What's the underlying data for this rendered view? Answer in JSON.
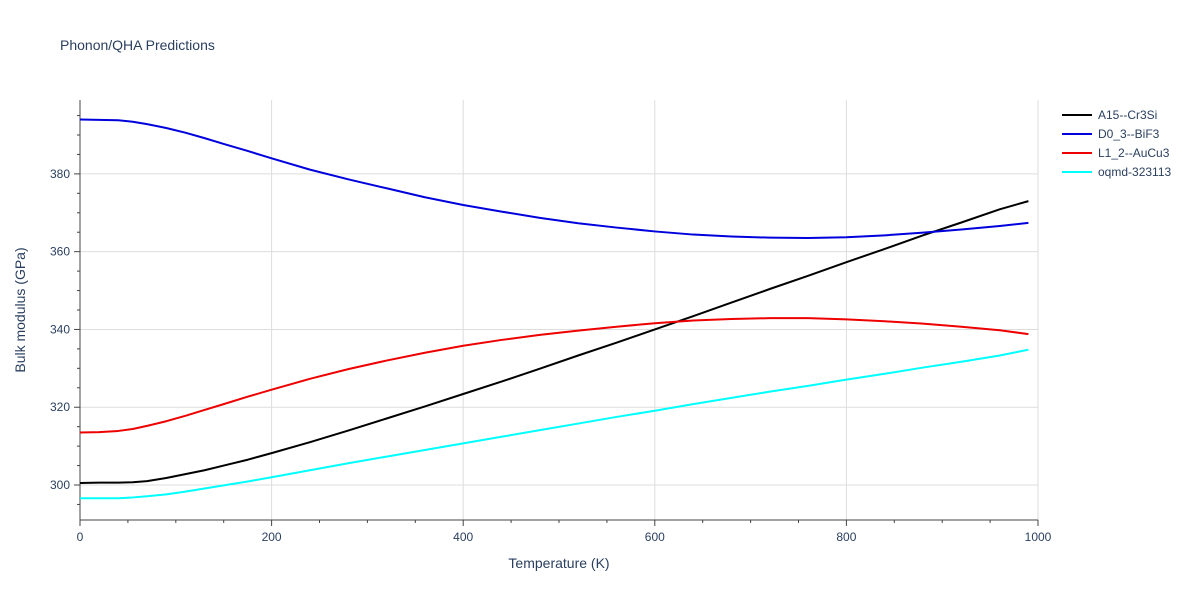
{
  "chart_data": {
    "type": "line",
    "title": "Phonon/QHA Predictions",
    "xlabel": "Temperature (K)",
    "ylabel": "Bulk modulus (GPa)",
    "xlim": [
      0,
      1000
    ],
    "ylim": [
      291,
      399
    ],
    "xticks": [
      0,
      200,
      400,
      600,
      800,
      1000
    ],
    "yticks": [
      300,
      320,
      340,
      360,
      380
    ],
    "grid": true,
    "legend_position": "top-right",
    "series": [
      {
        "name": "A15--Cr3Si",
        "color": "#000000",
        "x": [
          0,
          20,
          40,
          55,
          70,
          90,
          110,
          130,
          150,
          175,
          200,
          240,
          280,
          320,
          360,
          400,
          440,
          480,
          520,
          560,
          600,
          640,
          680,
          720,
          760,
          800,
          840,
          880,
          920,
          960,
          990
        ],
        "y": [
          300.5,
          300.6,
          300.6,
          300.7,
          301.0,
          301.8,
          302.8,
          303.8,
          305.0,
          306.5,
          308.2,
          311.0,
          314.0,
          317.1,
          320.2,
          323.4,
          326.6,
          329.9,
          333.3,
          336.6,
          340.0,
          343.4,
          346.9,
          350.4,
          353.8,
          357.3,
          360.7,
          364.2,
          367.5,
          370.9,
          373.0
        ]
      },
      {
        "name": "D0_3--BiF3",
        "color": "#0000dd",
        "x": [
          0,
          20,
          40,
          55,
          70,
          90,
          110,
          130,
          150,
          175,
          200,
          240,
          280,
          320,
          360,
          400,
          440,
          480,
          520,
          560,
          600,
          640,
          680,
          720,
          760,
          800,
          840,
          880,
          920,
          960,
          990
        ],
        "y": [
          394.0,
          393.9,
          393.8,
          393.4,
          392.8,
          391.8,
          390.6,
          389.2,
          387.7,
          385.9,
          384.0,
          381.1,
          378.6,
          376.3,
          374.0,
          372.0,
          370.3,
          368.7,
          367.3,
          366.2,
          365.2,
          364.4,
          363.9,
          363.6,
          363.5,
          363.7,
          364.2,
          364.9,
          365.7,
          366.6,
          367.4
        ]
      },
      {
        "name": "L1_2--AuCu3",
        "color": "#ee0000",
        "x": [
          0,
          20,
          40,
          55,
          70,
          90,
          110,
          130,
          150,
          175,
          200,
          240,
          280,
          320,
          360,
          400,
          440,
          480,
          520,
          560,
          600,
          640,
          680,
          720,
          760,
          800,
          840,
          880,
          920,
          960,
          990
        ],
        "y": [
          313.5,
          313.6,
          313.9,
          314.4,
          315.2,
          316.4,
          317.8,
          319.3,
          320.8,
          322.7,
          324.5,
          327.3,
          329.8,
          332.0,
          334.0,
          335.8,
          337.3,
          338.6,
          339.7,
          340.7,
          341.6,
          342.3,
          342.7,
          342.9,
          342.9,
          342.6,
          342.1,
          341.5,
          340.7,
          339.8,
          338.8
        ]
      },
      {
        "name": "oqmd-323113",
        "color": "#00ffff",
        "x": [
          0,
          20,
          40,
          55,
          70,
          90,
          110,
          130,
          150,
          175,
          200,
          240,
          280,
          320,
          360,
          400,
          440,
          480,
          520,
          560,
          600,
          640,
          680,
          720,
          760,
          800,
          840,
          880,
          920,
          960,
          990
        ],
        "y": [
          296.6,
          296.6,
          296.6,
          296.8,
          297.1,
          297.6,
          298.3,
          299.1,
          299.9,
          300.9,
          302.0,
          303.8,
          305.6,
          307.3,
          309.0,
          310.7,
          312.4,
          314.1,
          315.8,
          317.5,
          319.1,
          320.8,
          322.4,
          324.0,
          325.5,
          327.1,
          328.6,
          330.2,
          331.7,
          333.3,
          334.8
        ]
      }
    ]
  }
}
